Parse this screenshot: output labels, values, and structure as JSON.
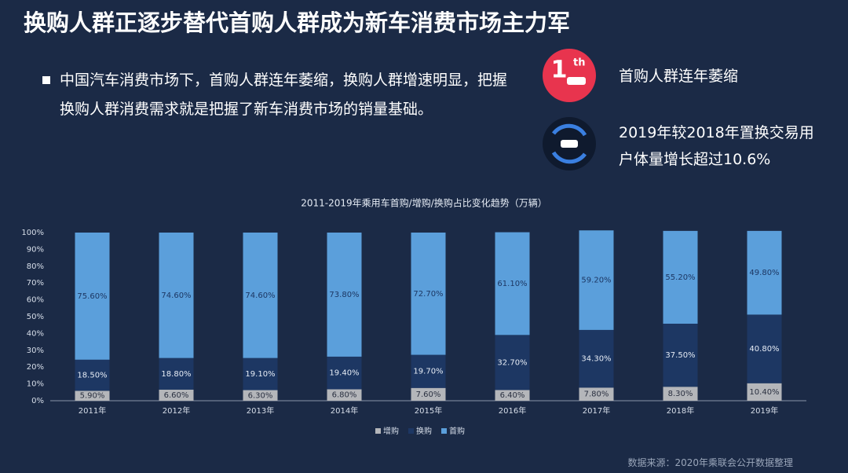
{
  "header": {
    "title": "换购人群正逐步替代首购人群成为新车消费市场主力军"
  },
  "bullet": "中国汽车消费市场下，首购人群连年萎缩，换购人群增速明显，把握换购人群消费需求就是把握了新车消费市场的销量基础。",
  "callouts": [
    {
      "badge": "1",
      "badge_sup": "th",
      "text": "首购人群连年萎缩"
    },
    {
      "text": "2019年较2018年置换交易用户体量增长超过10.6%"
    }
  ],
  "source": "数据来源：2020年乘联会公开数据整理",
  "chart_data": {
    "type": "stacked_bar",
    "title": "2011-2019年乘用车首购/增购/换购占比变化趋势（万辆）",
    "categories": [
      "2011年",
      "2012年",
      "2013年",
      "2014年",
      "2015年",
      "2016年",
      "2017年",
      "2018年",
      "2019年"
    ],
    "series": [
      {
        "name": "增购",
        "color": "#b4b6ba",
        "label_color": "#2a3040",
        "values": [
          5.9,
          6.6,
          6.3,
          6.8,
          7.6,
          6.4,
          7.8,
          8.3,
          10.4
        ],
        "value_labels": [
          "5.90%",
          "6.60%",
          "6.30%",
          "6.80%",
          "7.60%",
          "6.40%",
          "7.80%",
          "8.30%",
          "10.40%"
        ]
      },
      {
        "name": "换购",
        "color": "#1d3763",
        "label_color": "#e6ecf5",
        "values": [
          18.5,
          18.8,
          19.1,
          19.4,
          19.7,
          32.7,
          34.3,
          37.5,
          40.8
        ],
        "value_labels": [
          "18.50%",
          "18.80%",
          "19.10%",
          "19.40%",
          "19.70%",
          "32.70%",
          "34.30%",
          "37.50%",
          "40.80%"
        ]
      },
      {
        "name": "首购",
        "color": "#5b9fdb",
        "label_color": "#1d3763",
        "values": [
          75.6,
          74.6,
          74.6,
          73.8,
          72.7,
          61.1,
          59.2,
          55.2,
          49.8
        ],
        "value_labels": [
          "75.60%",
          "74.60%",
          "74.60%",
          "73.80%",
          "72.70%",
          "61.10%",
          "59.20%",
          "55.20%",
          "49.80%"
        ]
      }
    ],
    "ylim": [
      0,
      100
    ],
    "yticks": [
      {
        "value": 0,
        "label": "0%"
      },
      {
        "value": 10,
        "label": "10%"
      },
      {
        "value": 20,
        "label": "20%"
      },
      {
        "value": 30,
        "label": "30%"
      },
      {
        "value": 40,
        "label": "40%"
      },
      {
        "value": 50,
        "label": "50%"
      },
      {
        "value": 60,
        "label": "60%"
      },
      {
        "value": 70,
        "label": "70%"
      },
      {
        "value": 80,
        "label": "80%"
      },
      {
        "value": 90,
        "label": "90%"
      },
      {
        "value": 100,
        "label": "100%"
      }
    ],
    "grid": false
  }
}
